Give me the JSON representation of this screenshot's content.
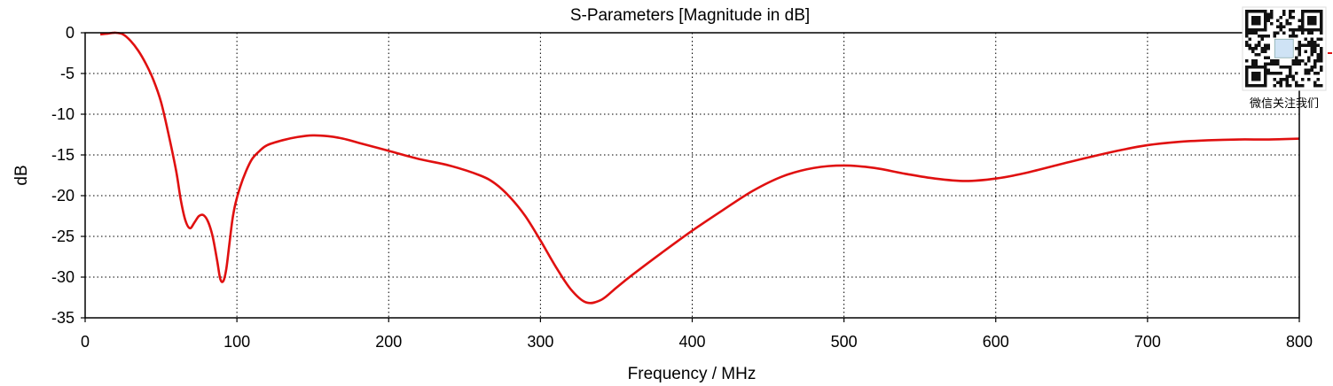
{
  "chart_data": {
    "type": "line",
    "title": "S-Parameters [Magnitude in dB]",
    "xlabel": "Frequency / MHz",
    "ylabel": "dB",
    "xlim": [
      0,
      800
    ],
    "ylim": [
      -35,
      0
    ],
    "xticks": [
      0,
      100,
      200,
      300,
      400,
      500,
      600,
      700,
      800
    ],
    "yticks": [
      0,
      -5,
      -10,
      -15,
      -20,
      -25,
      -30,
      -35
    ],
    "grid": true,
    "series": [
      {
        "color": "#e01010",
        "x": [
          10,
          15,
          20,
          25,
          30,
          35,
          40,
          45,
          50,
          55,
          60,
          63,
          66,
          69,
          72,
          75,
          78,
          81,
          84,
          87,
          89,
          91,
          93,
          95,
          97,
          99,
          102,
          106,
          110,
          115,
          120,
          130,
          140,
          150,
          160,
          170,
          180,
          200,
          220,
          240,
          260,
          270,
          280,
          290,
          300,
          310,
          320,
          330,
          340,
          350,
          360,
          380,
          400,
          420,
          440,
          460,
          480,
          500,
          520,
          540,
          560,
          580,
          600,
          620,
          650,
          680,
          700,
          720,
          740,
          760,
          780,
          800
        ],
        "y": [
          -0.2,
          -0.1,
          0.0,
          -0.2,
          -1.0,
          -2.2,
          -3.8,
          -5.8,
          -8.5,
          -12.5,
          -17.0,
          -20.5,
          -23.0,
          -24.0,
          -23.3,
          -22.5,
          -22.4,
          -23.2,
          -25.0,
          -28.0,
          -30.2,
          -30.5,
          -29.0,
          -26.0,
          -23.0,
          -21.0,
          -19.0,
          -17.0,
          -15.5,
          -14.5,
          -13.8,
          -13.2,
          -12.8,
          -12.6,
          -12.7,
          -13.0,
          -13.5,
          -14.5,
          -15.5,
          -16.3,
          -17.5,
          -18.5,
          -20.2,
          -22.5,
          -25.5,
          -28.7,
          -31.5,
          -33.1,
          -32.8,
          -31.3,
          -29.8,
          -27.0,
          -24.3,
          -21.8,
          -19.4,
          -17.6,
          -16.6,
          -16.3,
          -16.6,
          -17.3,
          -17.9,
          -18.2,
          -17.9,
          -17.2,
          -15.8,
          -14.5,
          -13.8,
          -13.4,
          -13.2,
          -13.1,
          -13.1,
          -13.0
        ]
      }
    ]
  },
  "qr": {
    "caption": "微信关注我们"
  }
}
